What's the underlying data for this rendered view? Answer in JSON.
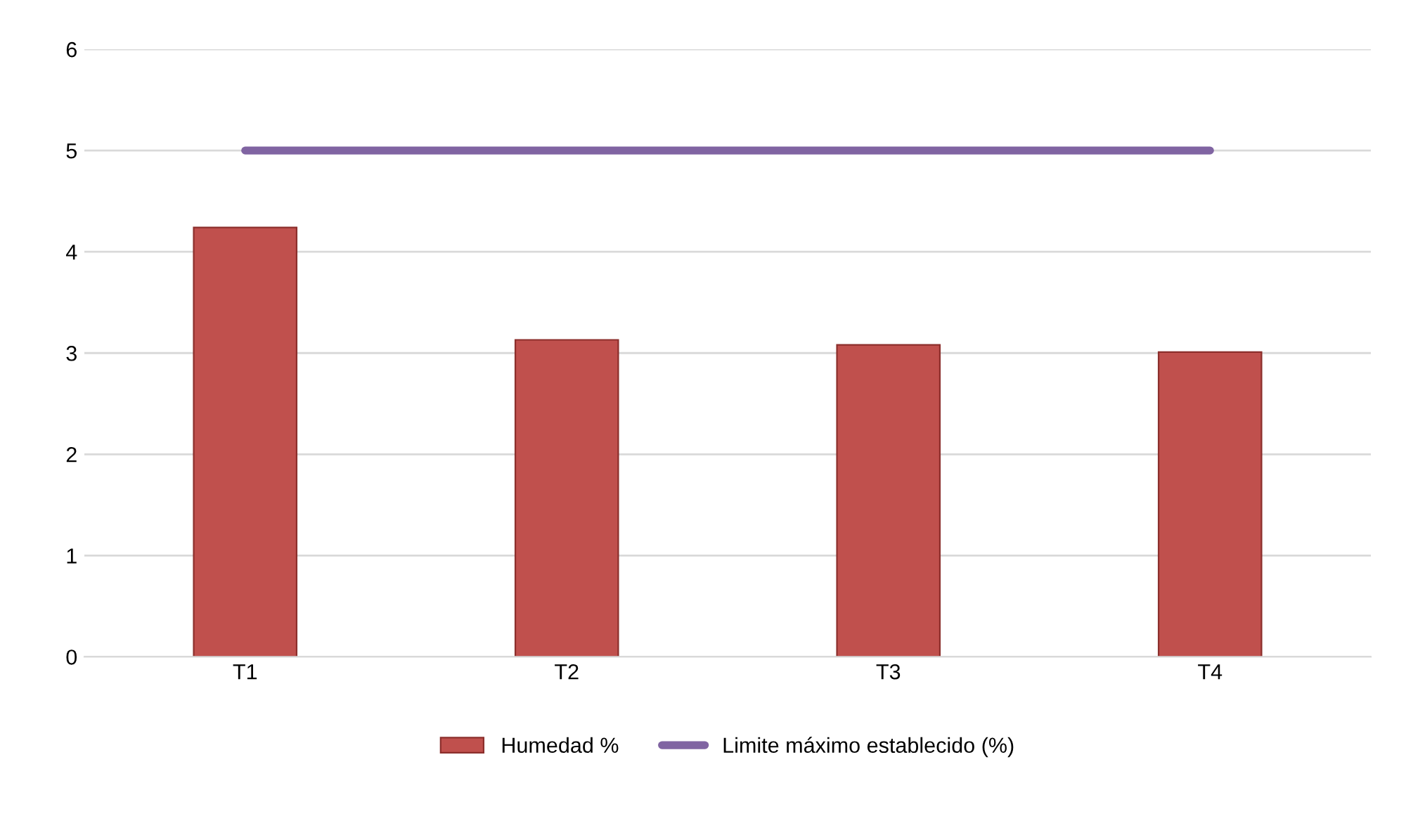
{
  "chart_data": {
    "type": "bar",
    "categories": [
      "T1",
      "T2",
      "T3",
      "T4"
    ],
    "series": [
      {
        "name": "Humedad %",
        "color": "#c0504d",
        "values": [
          4.24,
          3.13,
          3.08,
          3.01
        ]
      },
      {
        "name": "Limite máximo establecido (%)",
        "type": "line",
        "color": "#8064a2",
        "values": [
          5,
          5,
          5,
          5
        ]
      }
    ],
    "ylim": [
      0,
      6
    ],
    "yticks": [
      0,
      1,
      2,
      3,
      4,
      5,
      6
    ],
    "grid": "y",
    "legend": "bottom",
    "marker": "none"
  }
}
